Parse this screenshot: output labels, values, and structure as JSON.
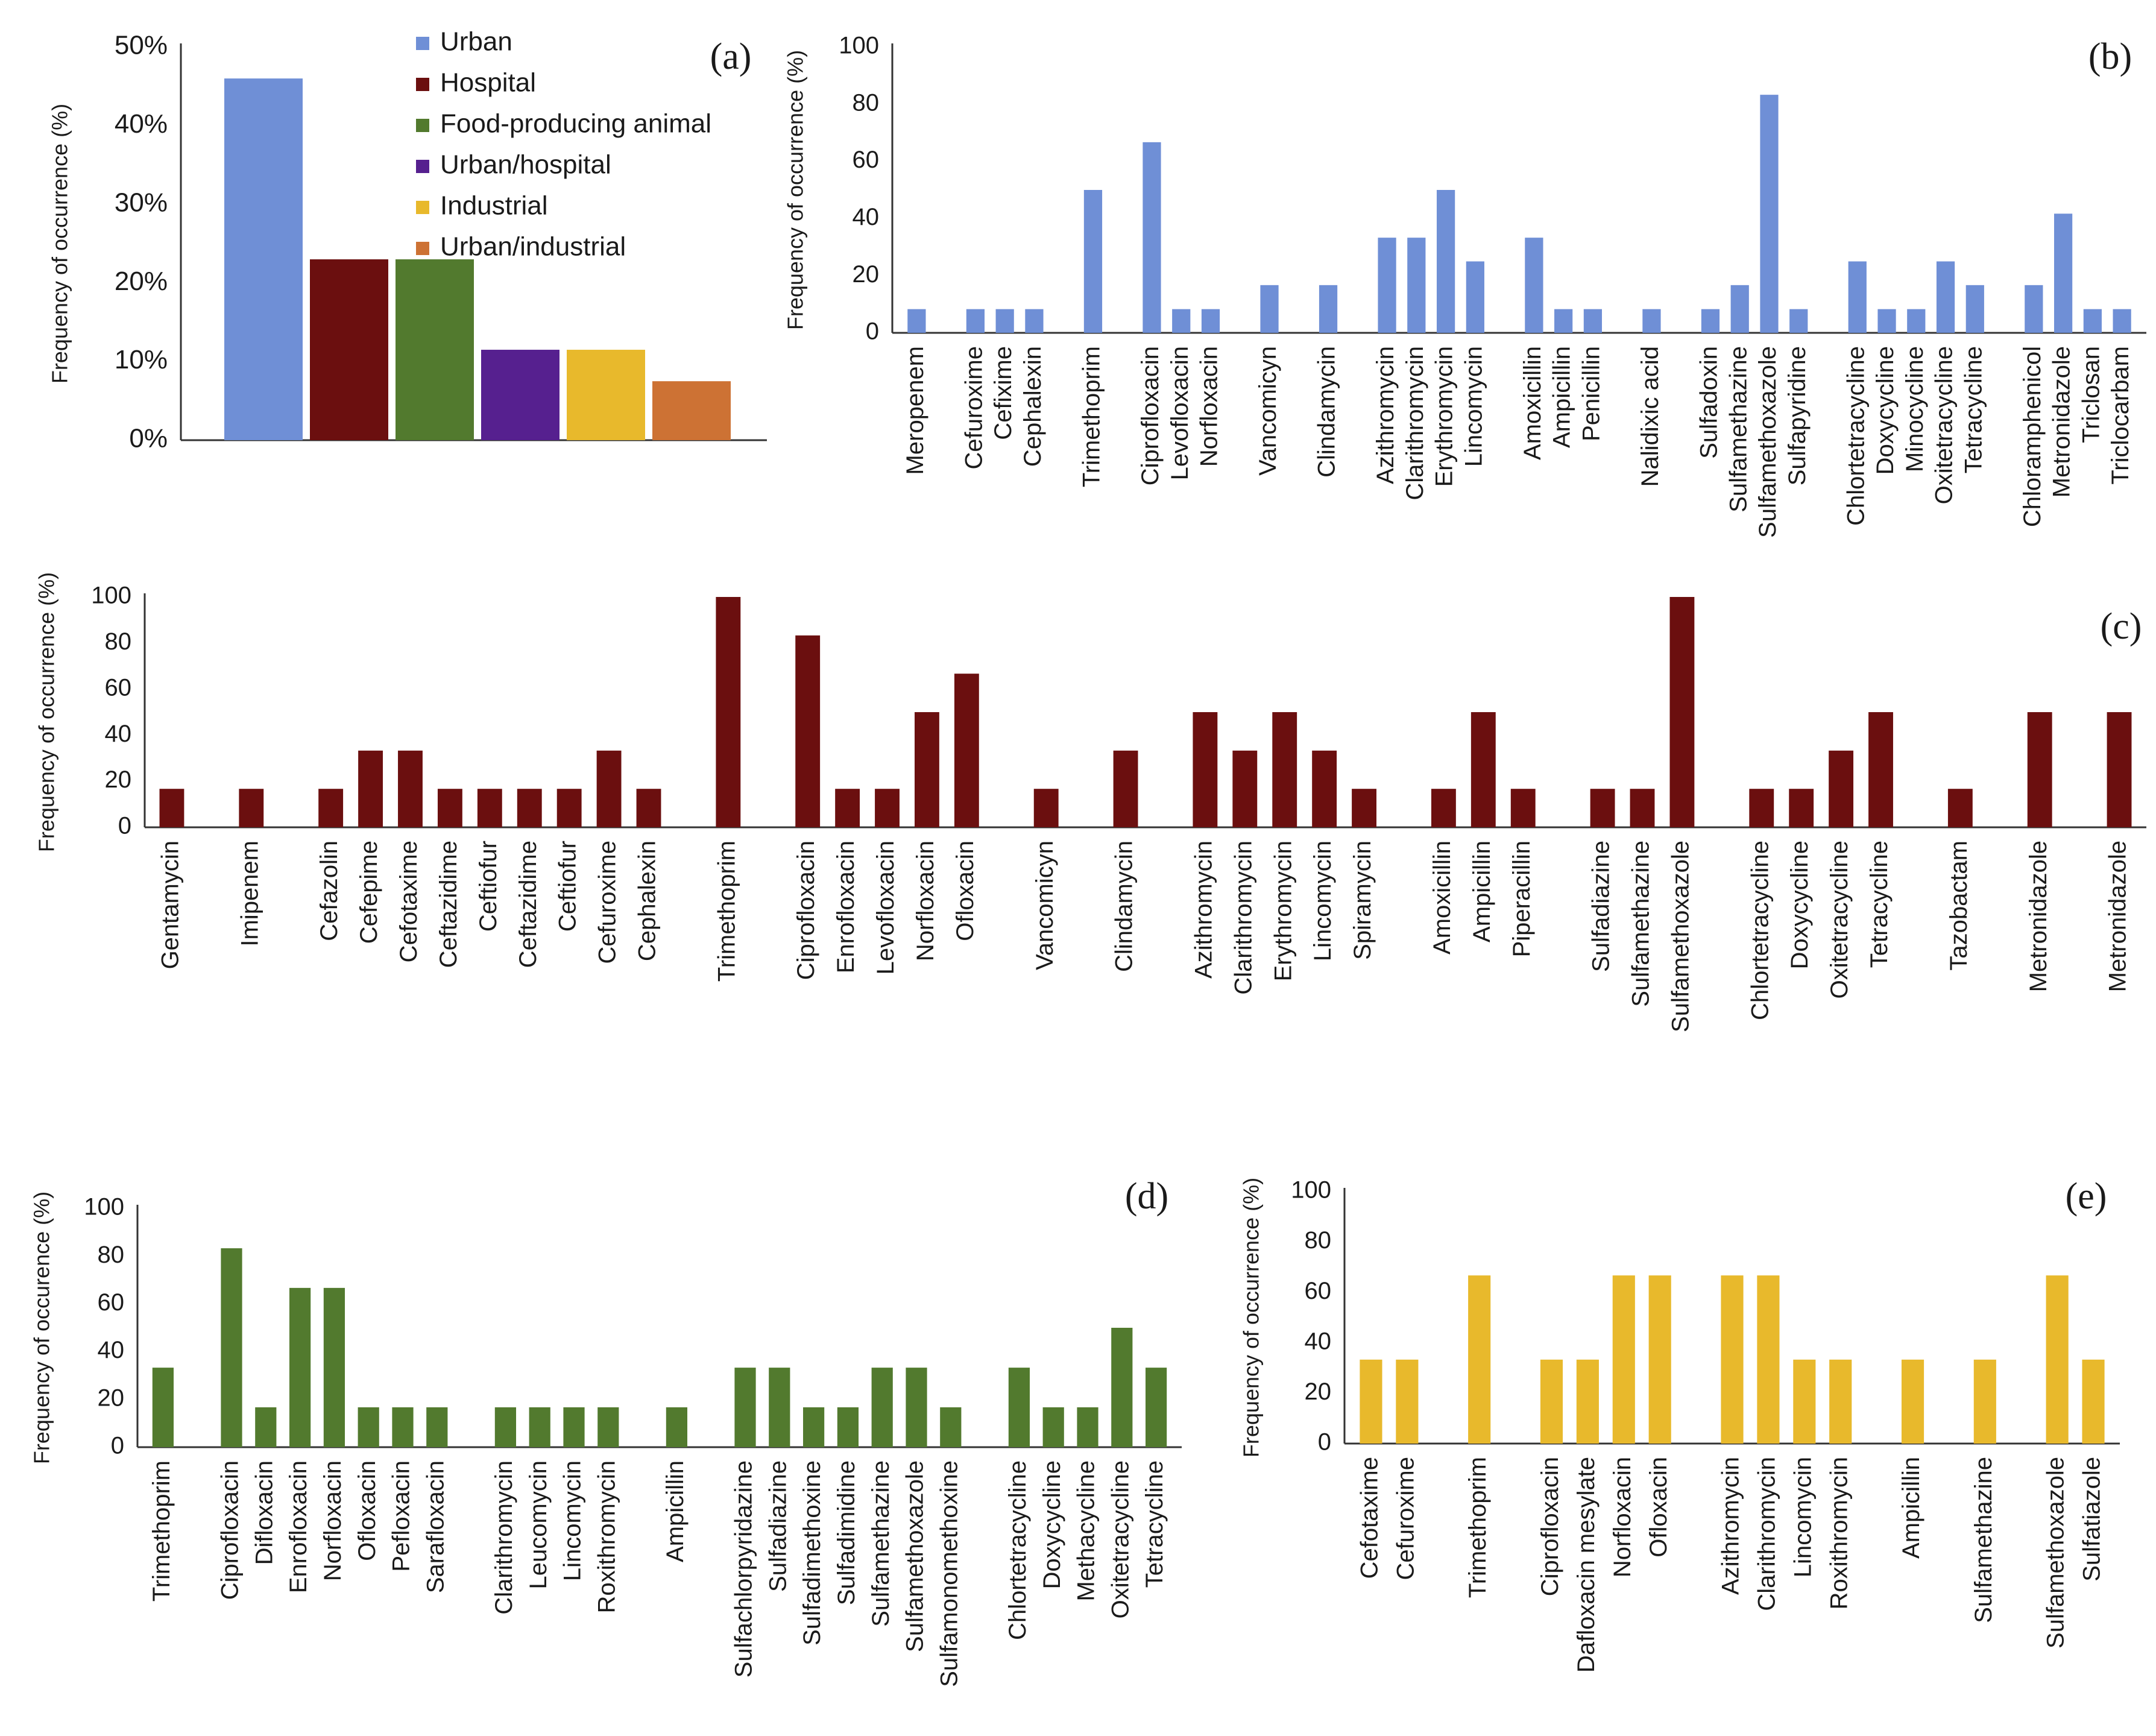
{
  "colors": {
    "urban": "#6f8fd6",
    "hospital": "#6b0f0f",
    "food": "#527a2e",
    "urbanHospital": "#56208f",
    "industrial": "#e8b92c",
    "urbanIndustrial": "#cd7234",
    "axis": "#333333"
  },
  "chart_data": [
    {
      "id": "a",
      "panel_label": "(a)",
      "type": "bar",
      "ylabel": "Frequency of occurrence (%)",
      "ylim": [
        0,
        50
      ],
      "yticks": [
        0,
        10,
        20,
        30,
        40,
        50
      ],
      "yticklabels": [
        "0%",
        "10%",
        "20%",
        "30%",
        "40%",
        "50%"
      ],
      "categories": [
        "Urban",
        "Hospital",
        "Food-producing animal",
        "Urban/hospital",
        "Industrial",
        "Urban/industrial"
      ],
      "values": [
        46,
        23,
        23,
        11.5,
        11.5,
        7.5
      ],
      "bar_colors": [
        "#6f8fd6",
        "#6b0f0f",
        "#527a2e",
        "#56208f",
        "#e8b92c",
        "#cd7234"
      ],
      "legend": [
        {
          "label": "Urban",
          "color": "#6f8fd6"
        },
        {
          "label": "Hospital",
          "color": "#6b0f0f"
        },
        {
          "label": "Food-producing animal",
          "color": "#527a2e"
        },
        {
          "label": "Urban/hospital",
          "color": "#56208f"
        },
        {
          "label": "Industrial",
          "color": "#e8b92c"
        },
        {
          "label": "Urban/industrial",
          "color": "#cd7234"
        }
      ],
      "legend_position": "top-right"
    },
    {
      "id": "b",
      "panel_label": "(b)",
      "type": "bar",
      "color": "#6f8fd6",
      "ylabel": "Frequency of occurrence (%)",
      "ylim": [
        0,
        100
      ],
      "yticks": [
        0,
        20,
        40,
        60,
        80,
        100
      ],
      "groups": [
        {
          "categories": [
            "Meropenem"
          ],
          "values": [
            8.3
          ]
        },
        {
          "categories": [
            "Cefuroxime",
            "Cefixime",
            "Cephalexin"
          ],
          "values": [
            8.3,
            8.3,
            8.3
          ]
        },
        {
          "categories": [
            "Trimethoprim"
          ],
          "values": [
            50
          ]
        },
        {
          "categories": [
            "Ciprofloxacin",
            "Levofloxacin",
            "Norfloxacin"
          ],
          "values": [
            66.7,
            8.3,
            8.3
          ]
        },
        {
          "categories": [
            "Vancomicyn"
          ],
          "values": [
            16.7
          ]
        },
        {
          "categories": [
            "Clindamycin"
          ],
          "values": [
            16.7
          ]
        },
        {
          "categories": [
            "Azithromycin",
            "Clarithromycin",
            "Erythromycin",
            "Lincomycin"
          ],
          "values": [
            33.3,
            33.3,
            50,
            25
          ]
        },
        {
          "categories": [
            "Amoxicillin",
            "Ampicillin",
            "Penicillin"
          ],
          "values": [
            33.3,
            8.3,
            8.3
          ]
        },
        {
          "categories": [
            "Nalidixic acid"
          ],
          "values": [
            8.3
          ]
        },
        {
          "categories": [
            "Sulfadoxin",
            "Sulfamethazine",
            "Sulfamethoxazole",
            "Sulfapyridine"
          ],
          "values": [
            8.3,
            16.7,
            83.3,
            8.3
          ]
        },
        {
          "categories": [
            "Chlortetracycline",
            "Doxycycline",
            "Minocycline",
            "Oxitetracycline",
            "Tetracycline"
          ],
          "values": [
            25,
            8.3,
            8.3,
            25,
            16.7
          ]
        },
        {
          "categories": [
            "Chloramphenicol",
            "Metronidazole",
            "Triclosan",
            "Triclocarbam"
          ],
          "values": [
            16.7,
            41.7,
            8.3,
            8.3
          ]
        }
      ]
    },
    {
      "id": "c",
      "panel_label": "(c)",
      "type": "bar",
      "color": "#6b0f0f",
      "ylabel": "Frequency of occurrence (%)",
      "ylim": [
        0,
        100
      ],
      "yticks": [
        0,
        20,
        40,
        60,
        80,
        100
      ],
      "groups": [
        {
          "categories": [
            "Gentamycin"
          ],
          "values": [
            16.7
          ]
        },
        {
          "categories": [
            "Imipenem"
          ],
          "values": [
            16.7
          ]
        },
        {
          "categories": [
            "Cefazolin",
            "Cefepime",
            "Cefotaxime",
            "Ceftazidime",
            "Ceftiofur",
            "Ceftazidime",
            "Ceftiofur",
            "Cefuroxime",
            "Cephalexin"
          ],
          "values": [
            16.7,
            33.3,
            33.3,
            16.7,
            16.7,
            16.7,
            16.7,
            33.3,
            16.7
          ]
        },
        {
          "categories": [
            "Trimethoprim"
          ],
          "values": [
            100
          ]
        },
        {
          "categories": [
            "Ciprofloxacin",
            "Enrofloxacin",
            "Levofloxacin",
            "Norfloxacin",
            "Ofloxacin"
          ],
          "values": [
            83.3,
            16.7,
            16.7,
            50,
            66.7
          ]
        },
        {
          "categories": [
            "Vancomicyn"
          ],
          "values": [
            16.7
          ]
        },
        {
          "categories": [
            "Clindamycin"
          ],
          "values": [
            33.3
          ]
        },
        {
          "categories": [
            "Azithromycin",
            "Clarithromycin",
            "Erythromycin",
            "Lincomycin",
            "Spiramycin"
          ],
          "values": [
            50,
            33.3,
            50,
            33.3,
            16.7
          ]
        },
        {
          "categories": [
            "Amoxicillin",
            "Ampicillin",
            "Piperacillin"
          ],
          "values": [
            16.7,
            50,
            16.7
          ]
        },
        {
          "categories": [
            "Sulfadiazine",
            "Sulfamethazine",
            "Sulfamethoxazole"
          ],
          "values": [
            16.7,
            16.7,
            100
          ]
        },
        {
          "categories": [
            "Chlortetracycline",
            "Doxycycline",
            "Oxitetracycline",
            "Tetracycline"
          ],
          "values": [
            16.7,
            16.7,
            33.3,
            50
          ]
        },
        {
          "categories": [
            "Tazobactam"
          ],
          "values": [
            16.7
          ]
        },
        {
          "categories": [
            "Metronidazole"
          ],
          "values": [
            50
          ]
        },
        {
          "categories": [
            "Metronidazole"
          ],
          "values": [
            50
          ]
        }
      ]
    },
    {
      "id": "d",
      "panel_label": "(d)",
      "type": "bar",
      "color": "#527a2e",
      "ylabel": "Frequency of occurence (%)",
      "ylim": [
        0,
        100
      ],
      "yticks": [
        0,
        20,
        40,
        60,
        80,
        100
      ],
      "groups": [
        {
          "categories": [
            "Trimethoprim"
          ],
          "values": [
            33.3
          ]
        },
        {
          "categories": [
            "Ciprofloxacin",
            "Difloxacin",
            "Enrofloxacin",
            "Norfloxacin",
            "Ofloxacin",
            "Pefloxacin",
            "Sarafloxacin"
          ],
          "values": [
            83.3,
            16.7,
            66.7,
            66.7,
            16.7,
            16.7,
            16.7
          ]
        },
        {
          "categories": [
            "Clarithromycin",
            "Leucomycin",
            "Lincomycin",
            "Roxithromycin"
          ],
          "values": [
            16.7,
            16.7,
            16.7,
            16.7
          ]
        },
        {
          "categories": [
            "Ampicillin"
          ],
          "values": [
            16.7
          ]
        },
        {
          "categories": [
            "Sulfachlorpyridazine",
            "Sulfadiazine",
            "Sulfadimethoxine",
            "Sulfadimidine",
            "Sulfamethazine",
            "Sulfamethoxazole",
            "Sulfamonomethoxine"
          ],
          "values": [
            33.3,
            33.3,
            16.7,
            16.7,
            33.3,
            33.3,
            16.7
          ]
        },
        {
          "categories": [
            "Chlortetracycline",
            "Doxycycline",
            "Methacycline",
            "Oxitetracycline",
            "Tetracycline"
          ],
          "values": [
            33.3,
            16.7,
            16.7,
            50,
            33.3
          ]
        }
      ]
    },
    {
      "id": "e",
      "panel_label": "(e)",
      "type": "bar",
      "color": "#e8b92c",
      "ylabel": "Frequency of occurrence (%)",
      "ylim": [
        0,
        100
      ],
      "yticks": [
        0,
        20,
        40,
        60,
        80,
        100
      ],
      "groups": [
        {
          "categories": [
            "Cefotaxime",
            "Cefuroxime"
          ],
          "values": [
            33.3,
            33.3
          ]
        },
        {
          "categories": [
            "Trimethoprim"
          ],
          "values": [
            66.7
          ]
        },
        {
          "categories": [
            "Ciprofloxacin",
            "Dafloxacin mesylate",
            "Norfloxacin",
            "Ofloxacin"
          ],
          "values": [
            33.3,
            33.3,
            66.7,
            66.7
          ]
        },
        {
          "categories": [
            "Azithromycin",
            "Clarithromycin",
            "Lincomycin",
            "Roxithromycin"
          ],
          "values": [
            66.7,
            66.7,
            33.3,
            33.3
          ]
        },
        {
          "categories": [
            "Ampicillin"
          ],
          "values": [
            33.3
          ]
        },
        {
          "categories": [
            "Sulfamethazine"
          ],
          "values": [
            33.3
          ]
        },
        {
          "categories": [
            "Sulfamethoxazole",
            "Sulfatiazole"
          ],
          "values": [
            66.7,
            33.3
          ]
        }
      ]
    }
  ]
}
